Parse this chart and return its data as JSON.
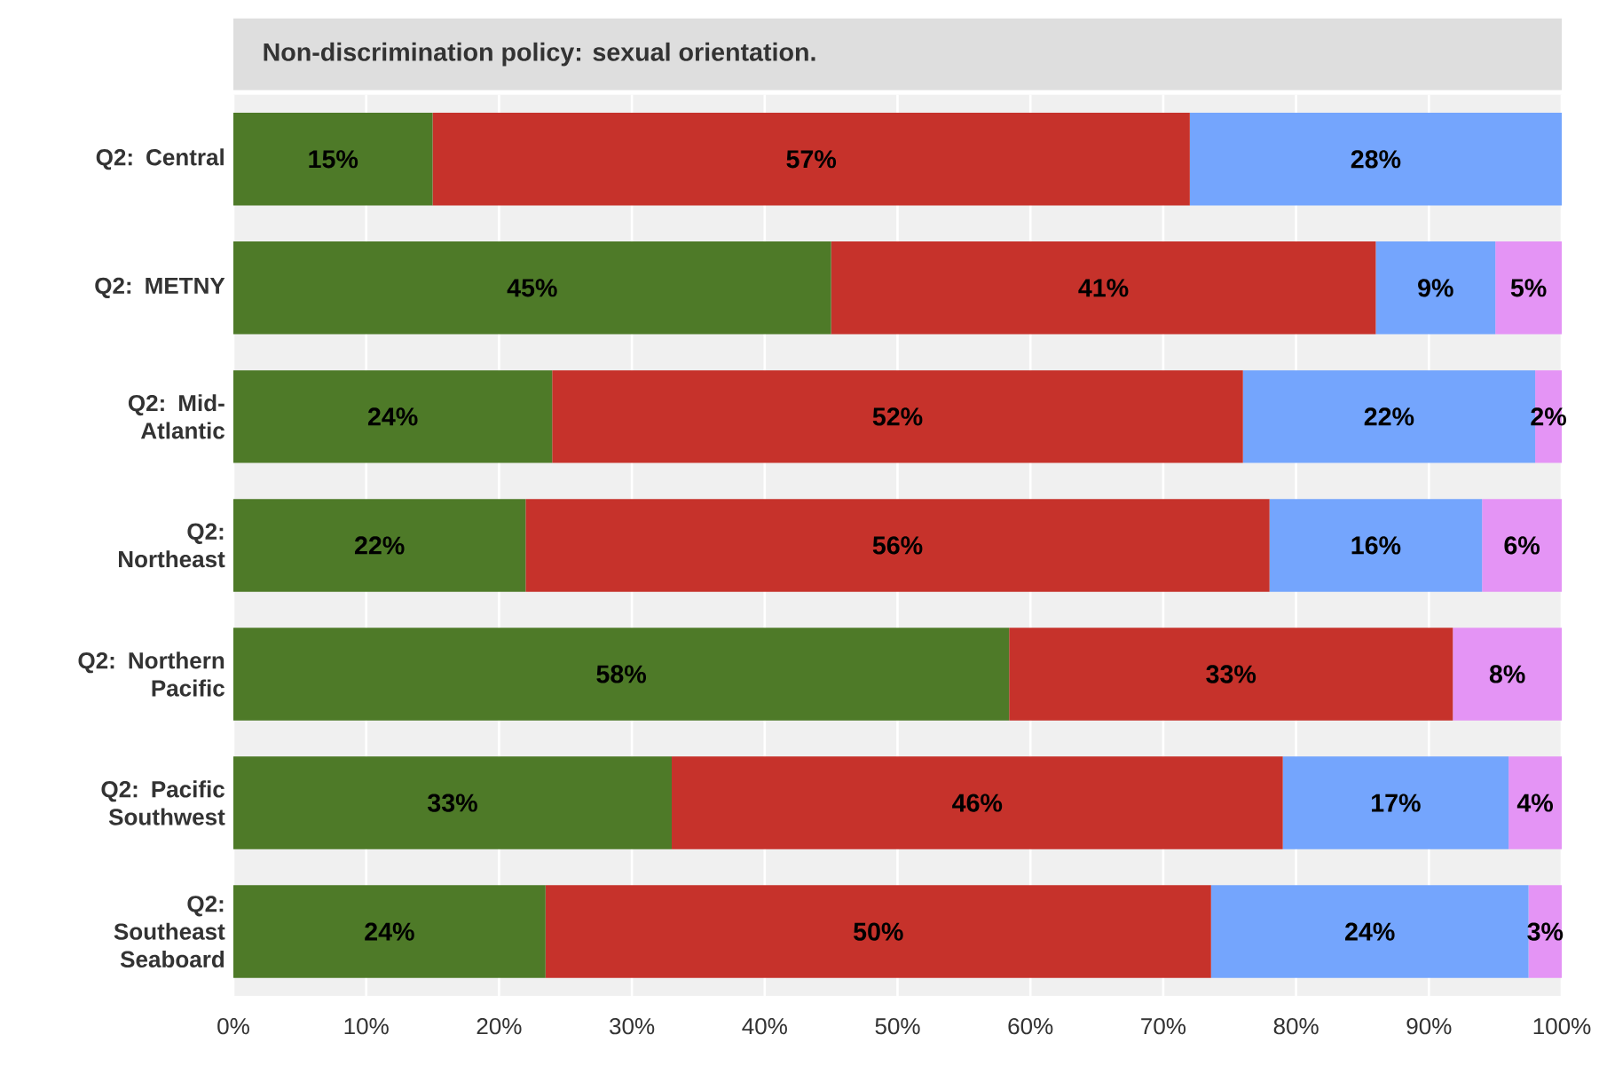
{
  "chart_data": {
    "type": "bar",
    "orientation": "horizontal",
    "stacked": true,
    "title": "Non-discrimination policy: sexual orientation.",
    "categories": [
      "Q2: Central",
      "Q2: METNY",
      "Q2: Mid-Atlantic",
      "Q2: Northeast",
      "Q2: Northern Pacific",
      "Q2: Pacific Southwest",
      "Q2: Southeast Seaboard"
    ],
    "series": [
      {
        "color": "#4e7a28",
        "values": [
          15,
          45,
          24,
          22,
          58.4,
          33,
          23.5
        ],
        "value_labels": [
          "15%",
          "45%",
          "24%",
          "22%",
          "58%",
          "33%",
          "24%"
        ]
      },
      {
        "color": "#c6322b",
        "values": [
          57,
          41,
          52,
          56,
          33.4,
          46,
          50.1
        ],
        "value_labels": [
          "57%",
          "41%",
          "52%",
          "56%",
          "33%",
          "46%",
          "50%"
        ]
      },
      {
        "color": "#74a5fd",
        "values": [
          28,
          9,
          22,
          16,
          null,
          17,
          23.9
        ],
        "value_labels": [
          "28%",
          "9%",
          "22%",
          "16%",
          null,
          "17%",
          "24%"
        ]
      },
      {
        "color": "#e494f5",
        "values": [
          null,
          5,
          2,
          6,
          8.2,
          4,
          2.5
        ],
        "value_labels": [
          null,
          "5%",
          "2%",
          "6%",
          "8%",
          "4%",
          "3%"
        ]
      }
    ],
    "xlim": [
      0,
      100
    ],
    "xticks": [
      {
        "value": 0,
        "label": "0%"
      },
      {
        "value": 10,
        "label": "10%"
      },
      {
        "value": 20,
        "label": "20%"
      },
      {
        "value": 30,
        "label": "30%"
      },
      {
        "value": 40,
        "label": "40%"
      },
      {
        "value": 50,
        "label": "50%"
      },
      {
        "value": 60,
        "label": "60%"
      },
      {
        "value": 70,
        "label": "70%"
      },
      {
        "value": 80,
        "label": "80%"
      },
      {
        "value": 90,
        "label": "90%"
      },
      {
        "value": 100,
        "label": "100%"
      }
    ],
    "grid": "x"
  }
}
